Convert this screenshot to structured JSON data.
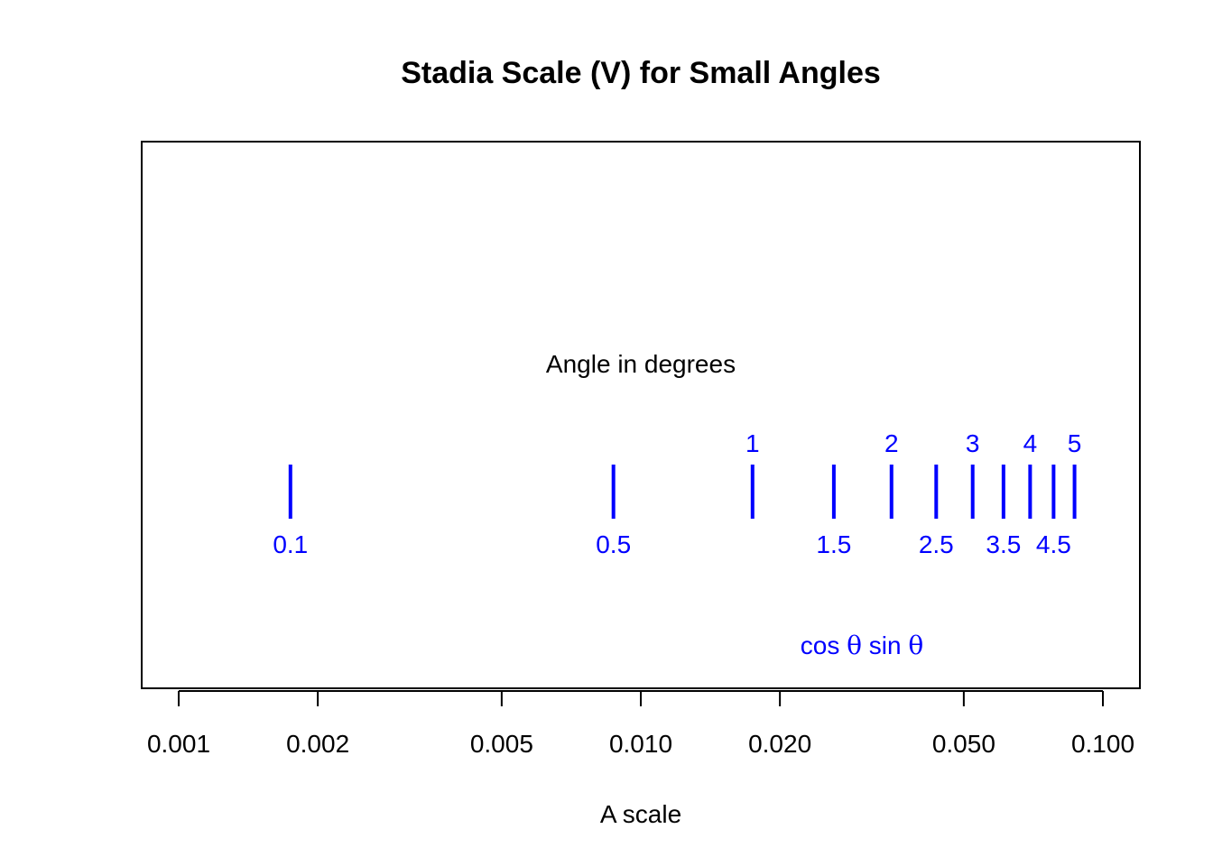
{
  "chart_data": {
    "type": "scatter",
    "title": "Stadia Scale (V) for Small Angles",
    "xlabel": "A scale",
    "ylabel": "",
    "x_scale": "log",
    "xlim": [
      0.001,
      0.1
    ],
    "x_ticks": [
      0.001,
      0.002,
      0.005,
      0.01,
      0.02,
      0.05,
      0.1
    ],
    "x_tick_labels": [
      "0.001",
      "0.002",
      "0.005",
      "0.010",
      "0.020",
      "0.050",
      "0.100"
    ],
    "grid": false,
    "legend": "none",
    "series_color": "#0000ff",
    "annotation_header": "Angle in degrees",
    "formula_label": {
      "prefix": "cos ",
      "symbol1": "θ",
      "middle": " sin ",
      "symbol2": "θ"
    },
    "marks": [
      {
        "angle": 0.1,
        "x": 0.001745,
        "label": "0.1",
        "label_position": "below"
      },
      {
        "angle": 0.5,
        "x": 0.008726,
        "label": "0.5",
        "label_position": "below"
      },
      {
        "angle": 1,
        "x": 0.01745,
        "label": "1",
        "label_position": "above"
      },
      {
        "angle": 1.5,
        "x": 0.026168,
        "label": "1.5",
        "label_position": "below"
      },
      {
        "angle": 2,
        "x": 0.034878,
        "label": "2",
        "label_position": "above"
      },
      {
        "angle": 2.5,
        "x": 0.043578,
        "label": "2.5",
        "label_position": "below"
      },
      {
        "angle": 3,
        "x": 0.052264,
        "label": "3",
        "label_position": "above"
      },
      {
        "angle": 3.5,
        "x": 0.060935,
        "label": "3.5",
        "label_position": "below"
      },
      {
        "angle": 4,
        "x": 0.069587,
        "label": "4",
        "label_position": "above"
      },
      {
        "angle": 4.5,
        "x": 0.078217,
        "label": "4.5",
        "label_position": "below"
      },
      {
        "angle": 5,
        "x": 0.086824,
        "label": "5",
        "label_position": "above"
      }
    ]
  }
}
